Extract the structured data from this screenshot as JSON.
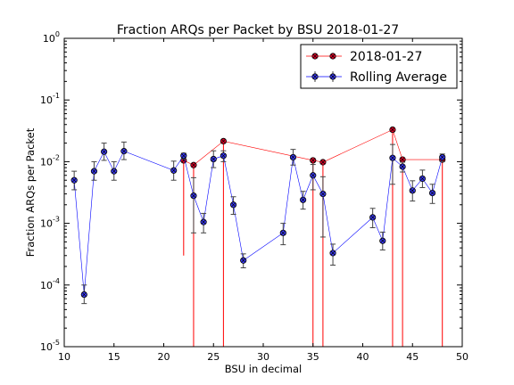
{
  "chart_data": {
    "type": "line",
    "title": "Fraction ARQs per Packet by BSU 2018-01-27",
    "xlabel": "BSU in decimal",
    "ylabel": "Fraction ARQs per Packet",
    "xlim": [
      10,
      50
    ],
    "ylim": [
      1e-05,
      1
    ],
    "yscale": "log",
    "xticks": [
      10,
      15,
      20,
      25,
      30,
      35,
      40,
      45,
      50
    ],
    "yticks": [
      {
        "value": 1e-05,
        "base": "10",
        "exp": "-5"
      },
      {
        "value": 0.0001,
        "base": "10",
        "exp": "-4"
      },
      {
        "value": 0.001,
        "base": "10",
        "exp": "-3"
      },
      {
        "value": 0.01,
        "base": "10",
        "exp": "-2"
      },
      {
        "value": 0.1,
        "base": "10",
        "exp": "-1"
      },
      {
        "value": 1,
        "base": "10",
        "exp": "0"
      }
    ],
    "grid": false,
    "legend_position": "top-right",
    "series": [
      {
        "name": "2018-01-27",
        "color": "#ff0000",
        "marker_face": "#e8002a",
        "x": [
          22,
          23,
          26,
          35,
          36,
          43,
          44,
          48
        ],
        "y": [
          0.0105,
          0.0088,
          0.0215,
          0.0105,
          0.0098,
          0.033,
          0.0108,
          0.0108
        ],
        "err_low": [
          0.0102,
          0.00879,
          0.02149,
          0.01049,
          0.00979,
          0.03299,
          0.01079,
          0.01079
        ],
        "err_high": [
          0,
          0,
          0,
          0,
          0,
          0,
          0,
          0
        ]
      },
      {
        "name": "Rolling Average",
        "color": "#0000ff",
        "marker_face": "#3c3cff",
        "x": [
          11,
          12,
          13,
          14,
          15,
          16,
          21,
          22,
          23,
          24,
          25,
          26,
          27,
          28,
          32,
          33,
          34,
          35,
          36,
          37,
          41,
          42,
          43,
          44,
          45,
          46,
          47,
          48
        ],
        "y": [
          0.005,
          7e-05,
          0.007,
          0.0145,
          0.007,
          0.0148,
          0.0072,
          0.0125,
          0.0028,
          0.00105,
          0.011,
          0.0125,
          0.002,
          0.00025,
          0.0007,
          0.0118,
          0.0024,
          0.006,
          0.003,
          0.00033,
          0.00125,
          0.00052,
          0.0115,
          0.0083,
          0.0034,
          0.0053,
          0.0031,
          0.0118
        ],
        "err_low": [
          0.0015,
          2e-05,
          0.002,
          0.004,
          0.002,
          0.004,
          0.0022,
          0.0015,
          0.0021,
          0.00035,
          0.003,
          0.0025,
          0.0006,
          6e-05,
          0.00025,
          0.003,
          0.0007,
          0.0025,
          0.0024,
          0.00012,
          0.0004,
          0.00015,
          0.0072,
          0.0015,
          0.0011,
          0.0015,
          0.001,
          0.0018
        ],
        "err_high": [
          0.002,
          3e-05,
          0.003,
          0.0055,
          0.003,
          0.006,
          0.003,
          0.0012,
          0.0027,
          0.0004,
          0.004,
          0.0025,
          0.0007,
          7e-05,
          0.0003,
          0.004,
          0.0009,
          0.003,
          0.0027,
          0.00013,
          0.0005,
          0.0002,
          0.0075,
          0.0015,
          0.0015,
          0.002,
          0.0012,
          0.0015
        ]
      }
    ]
  }
}
